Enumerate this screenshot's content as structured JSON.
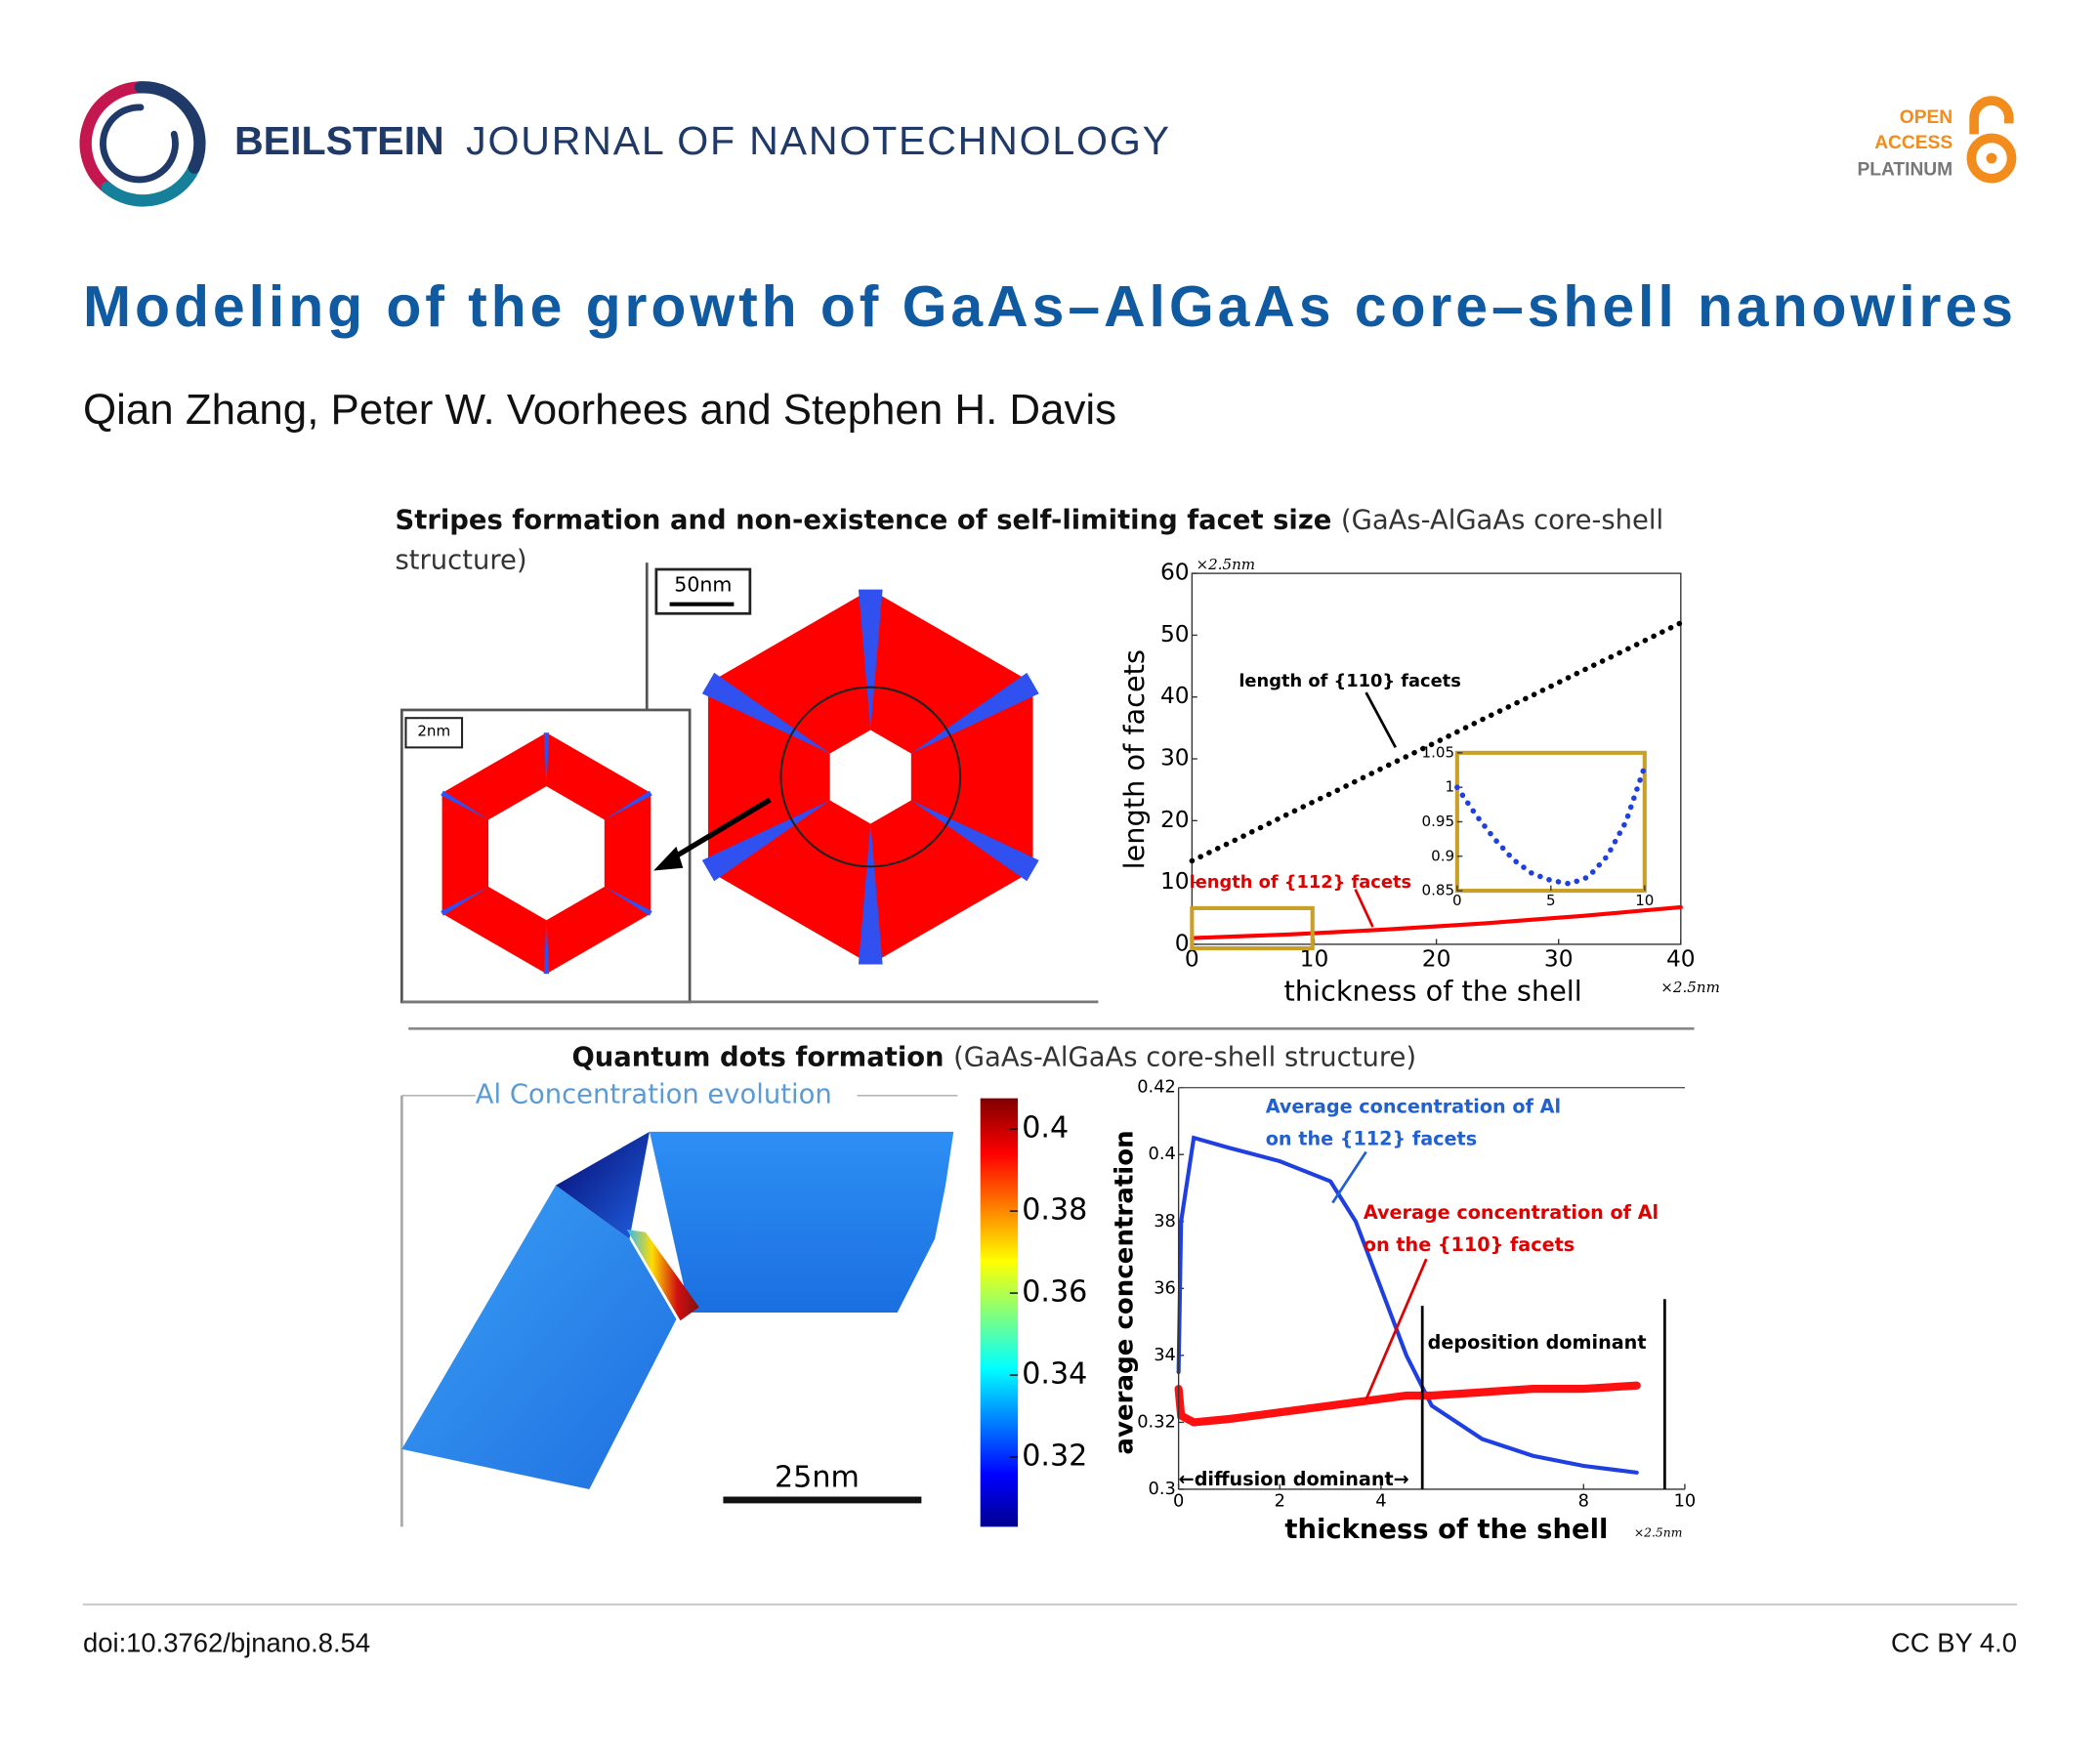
{
  "header": {
    "journal_bold": "BEILSTEIN",
    "journal": "JOURNAL OF NANOTECHNOLOGY",
    "badge": [
      "OPEN",
      "ACCESS",
      "PLATINUM"
    ]
  },
  "title": "Modeling of the growth of GaAs–AlGaAs core–shell nanowires",
  "authors": "Qian Zhang, Peter W. Voorhees and Stephen H. Davis",
  "figure": {
    "panel1": {
      "heading_bold": "Stripes formation and non-existence of self-limiting facet size",
      "heading": "(GaAs-AlGaAs core-shell",
      "heading2": "structure)",
      "scale_large": "50nm",
      "scale_small": "2nm"
    },
    "plot1": {
      "type": "line",
      "xlabel": "thickness of the shell",
      "ylabel": "length of facets",
      "x_unit": "×2.5nm",
      "y_unit": "×2.5nm",
      "xlim": [
        0,
        40
      ],
      "ylim": [
        0,
        60
      ],
      "xticks": [
        0,
        10,
        20,
        30,
        40
      ],
      "yticks": [
        0,
        10,
        20,
        30,
        40,
        50,
        60
      ],
      "x": [
        0,
        4,
        8,
        12,
        16,
        20,
        24,
        28,
        32,
        36,
        40
      ],
      "series": [
        {
          "name": "length of {110} facets",
          "color": "#000000",
          "values": [
            13.5,
            17.3,
            21.2,
            25,
            28.9,
            32.7,
            36.6,
            40.4,
            44.3,
            48.1,
            52
          ]
        },
        {
          "name": "length of {112} facets",
          "color": "#ff0000",
          "values": [
            1,
            1.3,
            1.6,
            2,
            2.4,
            2.9,
            3.4,
            4,
            4.6,
            5.3,
            6
          ]
        }
      ],
      "inset": {
        "type": "line",
        "xlim": [
          0,
          10
        ],
        "ylim": [
          0.85,
          1.05
        ],
        "xticks": [
          0,
          5,
          10
        ],
        "yticks": [
          1.05,
          1,
          0.95,
          0.9,
          0.85
        ],
        "x": [
          0,
          1,
          2,
          3,
          4,
          5,
          6,
          7,
          8,
          9,
          10
        ],
        "series": [
          {
            "color": "#1f3fe0",
            "values": [
              1.0,
              0.96,
              0.925,
              0.895,
              0.875,
              0.865,
              0.86,
              0.87,
              0.9,
              0.95,
              1.03
            ]
          }
        ]
      }
    },
    "panel2": {
      "heading_bold": "Quantum dots formation",
      "heading": "(GaAs-AlGaAs core-shell structure)",
      "subtitle": "Al Concentration evolution",
      "scale": "25nm"
    },
    "colorbar": {
      "lim": [
        0.303,
        0.4075
      ],
      "ticks": [
        0.32,
        0.34,
        0.36,
        0.38,
        0.4
      ]
    },
    "plot2": {
      "type": "line",
      "xlabel": "thickness of the shell",
      "ylabel": "average concentration",
      "x_unit": "×2.5nm",
      "xlim": [
        0,
        10
      ],
      "ylim": [
        0.3,
        0.42
      ],
      "xticks": [
        0,
        2,
        4,
        8,
        10
      ],
      "yticks": [
        0.3,
        0.32,
        {
          "value": 0.34,
          "label": "34"
        },
        {
          "value": 0.36,
          "label": "36"
        },
        {
          "value": 0.38,
          "label": "38"
        },
        0.4,
        0.42
      ],
      "x": [
        0,
        0.05,
        0.3,
        1,
        2,
        3,
        3.5,
        4,
        4.5,
        5,
        6,
        7,
        8,
        9.05
      ],
      "series": [
        {
          "name": "Average concentration of Al on the {112} facets",
          "color": "#1f3fe0",
          "values": [
            0.335,
            0.38,
            0.405,
            0.402,
            0.398,
            0.392,
            0.38,
            0.36,
            0.34,
            0.325,
            0.315,
            0.31,
            0.307,
            0.305
          ]
        },
        {
          "name": "Average concentration of Al on the {110} facets",
          "color": "#ff1010",
          "values": [
            0.33,
            0.322,
            0.32,
            0.321,
            0.323,
            0.325,
            0.326,
            0.327,
            0.328,
            0.328,
            0.329,
            0.33,
            0.33,
            0.331
          ]
        }
      ],
      "annotations": [
        "Average concentration of Al",
        "on the {112} facets",
        "Average concentration of Al",
        "on the {110} facets",
        "deposition dominant",
        "←diffusion dominant→"
      ]
    }
  },
  "footer": {
    "doi": "doi:10.3762/bjnano.8.54",
    "license": "CC BY 4.0"
  }
}
